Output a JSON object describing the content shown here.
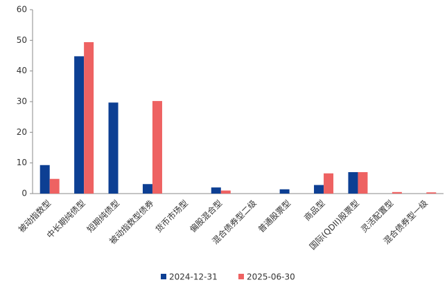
{
  "chart_data": {
    "type": "bar",
    "categories": [
      "被动指数型",
      "中长期纯债型",
      "短期纯债型",
      "被动指数型债券",
      "货币市场型",
      "偏股混合型",
      "混合债券型二级",
      "普通股票型",
      "商品型",
      "国际(QDII)股票型",
      "灵活配置型",
      "混合债券型一级"
    ],
    "series": [
      {
        "name": "2024-12-31",
        "color": "#0d3f93",
        "values": [
          9.3,
          44.8,
          29.7,
          3.1,
          0,
          2.0,
          0,
          1.4,
          2.8,
          7.0,
          0,
          0
        ]
      },
      {
        "name": "2025-06-30",
        "color": "#ee6262",
        "values": [
          4.8,
          49.4,
          0,
          30.2,
          0,
          1.0,
          0,
          0,
          6.6,
          7.0,
          0.5,
          0.4
        ]
      }
    ],
    "ylim": [
      0,
      60
    ],
    "yticks": [
      0,
      10,
      20,
      30,
      40,
      50,
      60
    ],
    "legend": "bottom"
  }
}
